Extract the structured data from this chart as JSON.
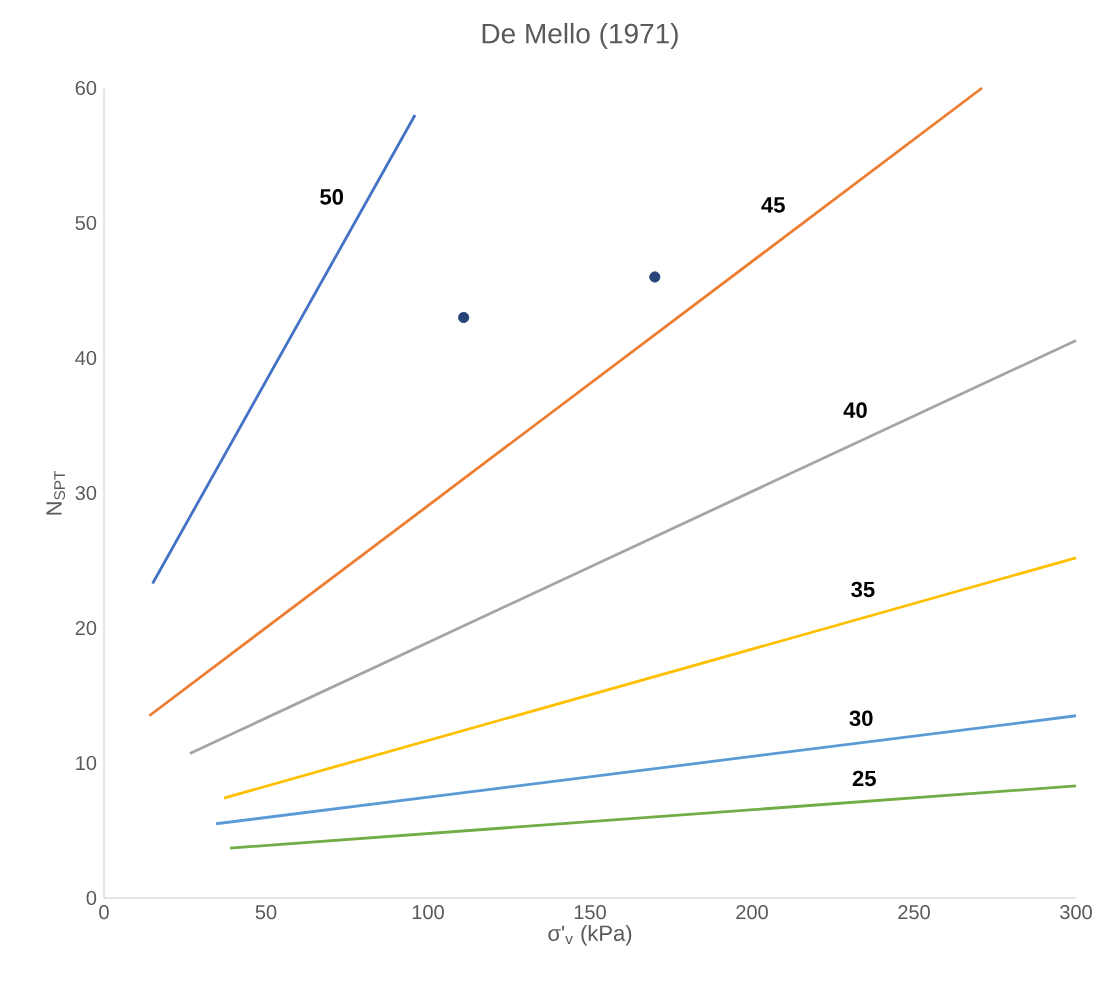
{
  "chart_data": {
    "type": "line",
    "title": "De Mello (1971)",
    "xlabel": "σ'$_{v}$ (kPa)",
    "ylabel": "N$_{SPT}$",
    "xlim": [
      0,
      300
    ],
    "ylim": [
      0,
      60
    ],
    "xticks": [
      0,
      50,
      100,
      150,
      200,
      250,
      300
    ],
    "yticks": [
      0,
      10,
      20,
      30,
      40,
      50,
      60
    ],
    "grid": false,
    "legend": false,
    "series": [
      {
        "name": "50",
        "color": "#4472c4",
        "x": [
          15,
          96
        ],
        "values": [
          23.3,
          58
        ]
      },
      {
        "name": "45",
        "color": "#ed7d31",
        "x": [
          14,
          271
        ],
        "values": [
          13.5,
          60
        ]
      },
      {
        "name": "40",
        "color": "#a5a5a5",
        "x": [
          26.5,
          300
        ],
        "values": [
          10.7,
          41.3
        ]
      },
      {
        "name": "35",
        "color": "#ffc000",
        "x": [
          37,
          300
        ],
        "values": [
          7.4,
          25.2
        ]
      },
      {
        "name": "30",
        "color": "#5b9bd5",
        "x": [
          34.6,
          300
        ],
        "values": [
          5.5,
          13.5
        ]
      },
      {
        "name": "25",
        "color": "#70ad47",
        "x": [
          38.9,
          300
        ],
        "values": [
          3.7,
          8.3
        ]
      },
      {
        "type": "scatter",
        "marker": "circle",
        "color": "#264478",
        "x": [
          111,
          170
        ],
        "values": [
          43,
          46
        ]
      }
    ]
  }
}
